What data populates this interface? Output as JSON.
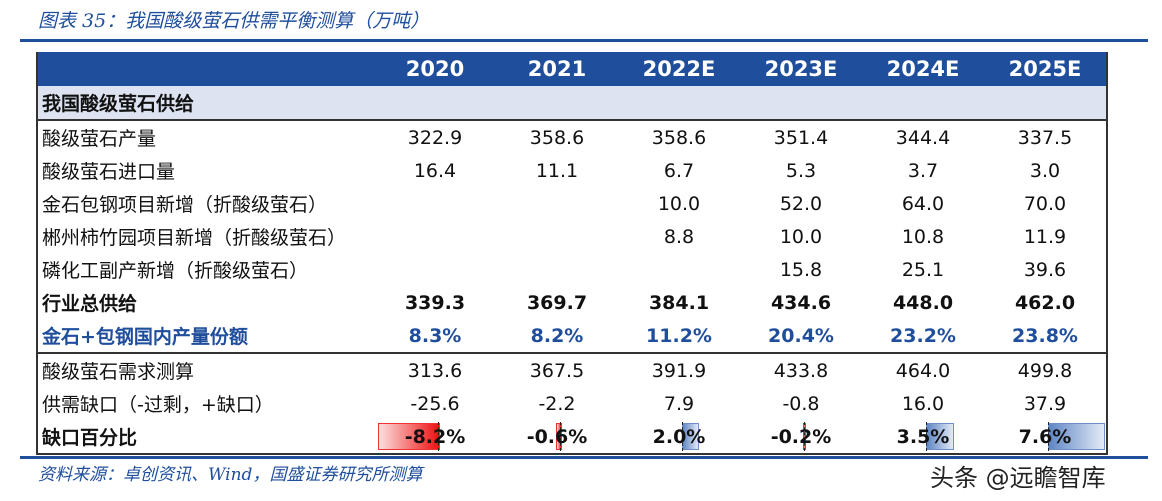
{
  "title": "图表 35：我国酸级萤石供需平衡测算（万吨）",
  "columns": [
    "2020",
    "2021",
    "2022E",
    "2023E",
    "2024E",
    "2025E"
  ],
  "section_label": "我国酸级萤石供给",
  "rows": [
    {
      "label": "酸级萤石产量",
      "values": [
        "322.9",
        "358.6",
        "358.6",
        "351.4",
        "344.4",
        "337.5"
      ],
      "style": ""
    },
    {
      "label": "酸级萤石进口量",
      "values": [
        "16.4",
        "11.1",
        "6.7",
        "5.3",
        "3.7",
        "3.0"
      ],
      "style": ""
    },
    {
      "label": "金石包钢项目新增（折酸级萤石）",
      "values": [
        "",
        "",
        "10.0",
        "52.0",
        "64.0",
        "70.0"
      ],
      "style": ""
    },
    {
      "label": "郴州柿竹园项目新增（折酸级萤石）",
      "values": [
        "",
        "",
        "8.8",
        "10.0",
        "10.8",
        "11.9"
      ],
      "style": ""
    },
    {
      "label": "磷化工副产新增（折酸级萤石）",
      "values": [
        "",
        "",
        "",
        "15.8",
        "25.1",
        "39.6"
      ],
      "style": ""
    },
    {
      "label": "行业总供给",
      "values": [
        "339.3",
        "369.7",
        "384.1",
        "434.6",
        "448.0",
        "462.0"
      ],
      "style": "bold"
    },
    {
      "label": "金石+包钢国内产量份额",
      "values": [
        "8.3%",
        "8.2%",
        "11.2%",
        "20.4%",
        "23.2%",
        "23.8%"
      ],
      "style": "blue"
    },
    {
      "label": "酸级萤石需求测算",
      "values": [
        "313.6",
        "367.5",
        "391.9",
        "433.8",
        "464.0",
        "499.8"
      ],
      "style": ""
    },
    {
      "label": "供需缺口（-过剩，+缺口）",
      "values": [
        "-25.6",
        "-2.2",
        "7.9",
        "-0.8",
        "16.0",
        "37.9"
      ],
      "style": ""
    }
  ],
  "gap_row": {
    "label": "缺口百分比",
    "values": [
      "-8.2%",
      "-0.6%",
      "2.0%",
      "-0.2%",
      "3.5%",
      "7.6%"
    ],
    "numeric": [
      -8.2,
      -0.6,
      2.0,
      -0.2,
      3.5,
      7.6
    ]
  },
  "colors": {
    "accent": "#1f4e9c",
    "negative_bar": "#ee1111",
    "positive_bar": "#5f86c4"
  },
  "source": "资料来源：卓创资讯、Wind，国盛证券研究所测算",
  "watermark": "头条 @远瞻智库"
}
